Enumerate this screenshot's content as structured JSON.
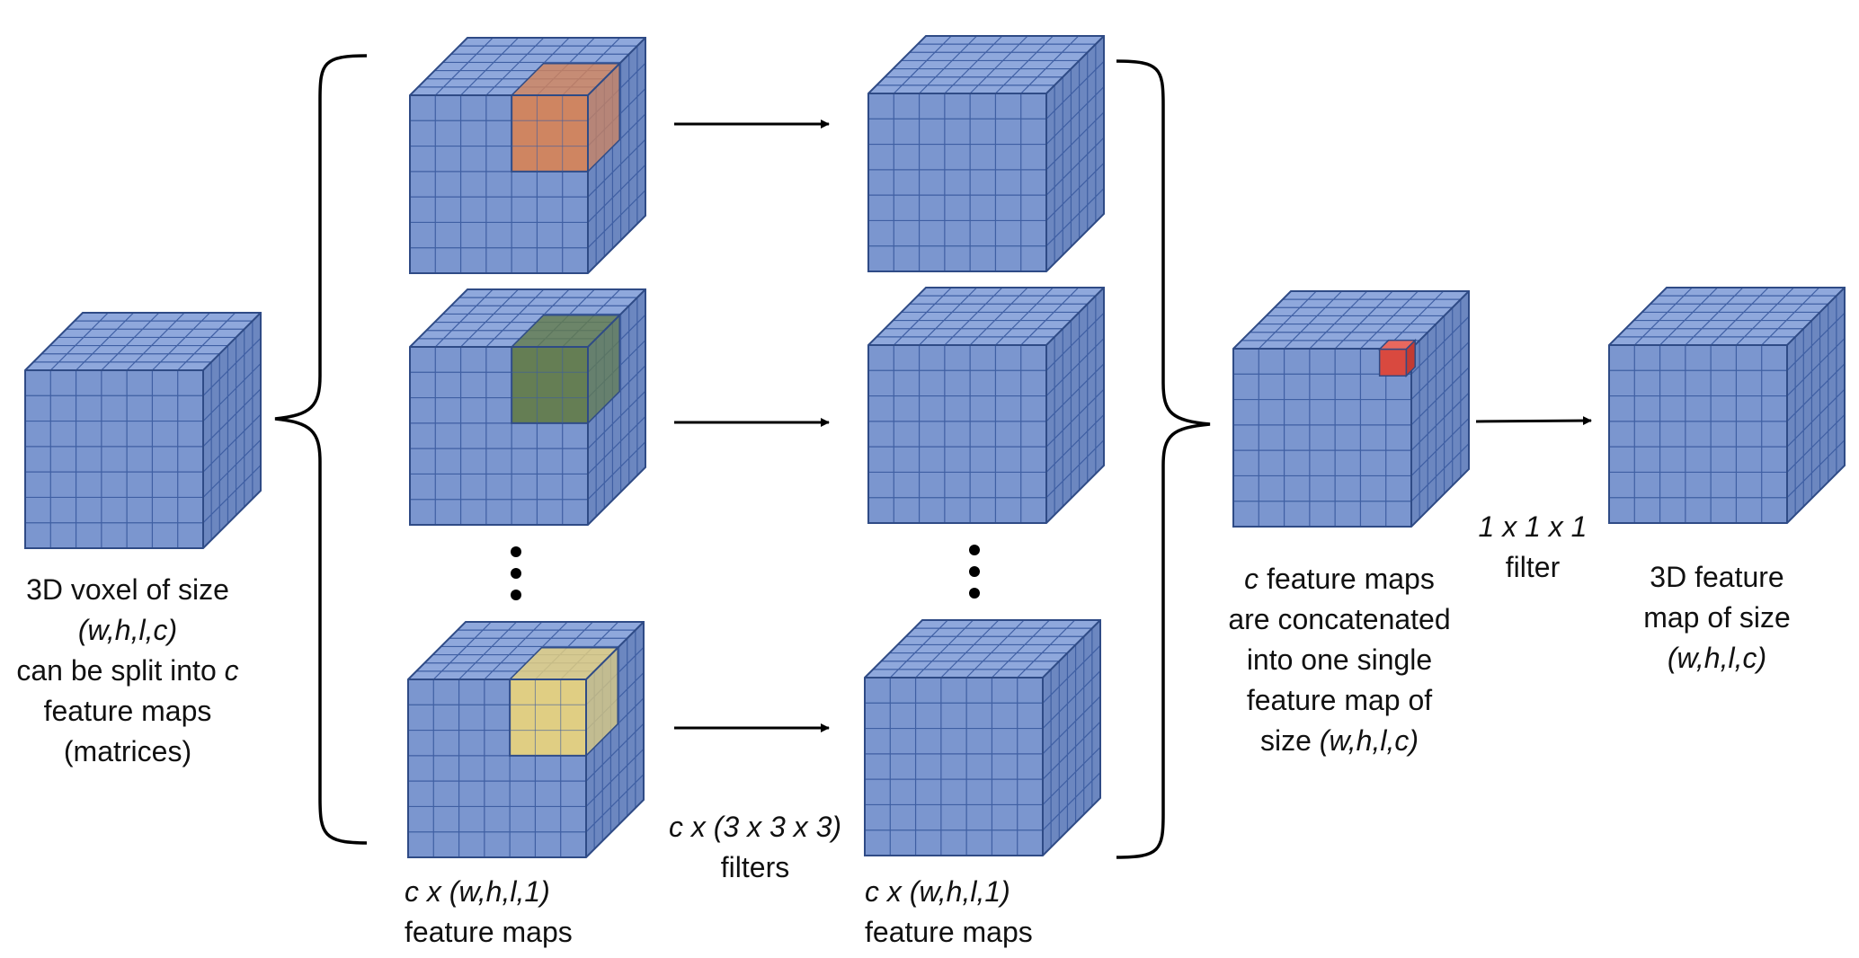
{
  "diagram": {
    "colors": {
      "cube_front": "#7b96cf",
      "cube_top": "#8fa8dc",
      "cube_side": "#6c87c0",
      "grid_line": "#3f5fa3",
      "edge": "#2f4b86",
      "highlight_orange": "#d4855c",
      "highlight_green": "#647d4e",
      "highlight_yellow": "#e6d17f",
      "highlight_red": "#d9493f",
      "arrow": "#000000"
    },
    "labels": {
      "input": {
        "line1": "3D voxel of size",
        "line2": "(w,h,l,c)",
        "line3_pre": "can be split into ",
        "line3_var": "c",
        "line4": "feature maps",
        "line5": "(matrices)"
      },
      "split_maps": {
        "line1": "c x (w,h,l,1)",
        "line2": "feature maps"
      },
      "filters": {
        "line1": "c x (3 x 3 x 3)",
        "line2": "filters"
      },
      "conv_maps": {
        "line1": "c x (w,h,l,1)",
        "line2": "feature maps"
      },
      "concat": {
        "line1_var": "c",
        "line1_post": " feature maps",
        "line2": "are concatenated",
        "line3": "into one single",
        "line4": "feature map of",
        "line5_pre": "size ",
        "line5_var": "(w,h,l,c)"
      },
      "pointwise": {
        "line1": "1 x 1 x 1",
        "line2": "filter"
      },
      "output": {
        "line1": "3D feature",
        "line2": "map of size",
        "line3": "(w,h,l,c)"
      }
    }
  }
}
